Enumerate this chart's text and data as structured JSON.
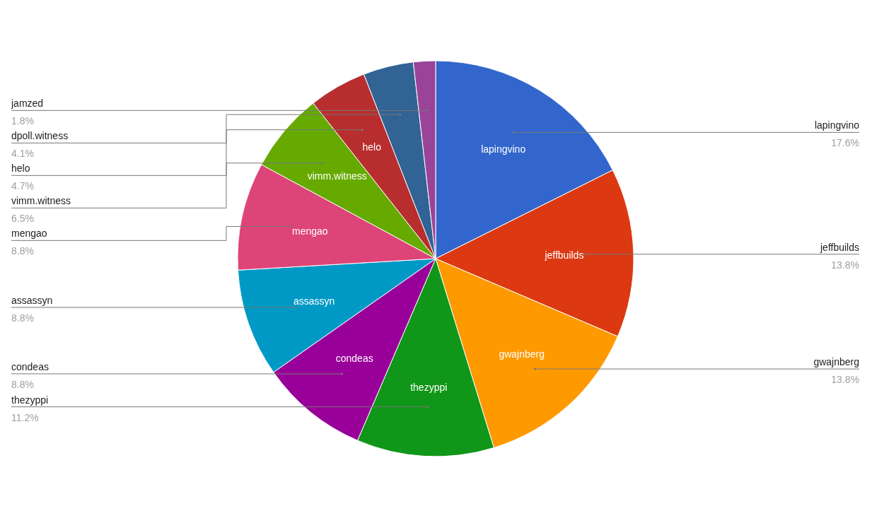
{
  "chart_data": {
    "type": "pie",
    "categories": [
      "lapingvino",
      "jeffbuilds",
      "gwajnberg",
      "thezyppi",
      "condeas",
      "assassyn",
      "mengao",
      "vimm.witness",
      "helo",
      "dpoll.witness",
      "jamzed"
    ],
    "values": [
      17.6,
      13.8,
      13.8,
      11.2,
      8.8,
      8.8,
      8.8,
      6.5,
      4.7,
      4.1,
      1.8
    ],
    "value_labels": [
      "17.6%",
      "13.8%",
      "13.8%",
      "11.2%",
      "8.8%",
      "8.8%",
      "8.8%",
      "6.5%",
      "4.7%",
      "4.1%",
      "1.8%"
    ],
    "colors": [
      "#3366cc",
      "#dc3912",
      "#ff9900",
      "#109618",
      "#990099",
      "#0099c6",
      "#dd4477",
      "#66aa00",
      "#b82e2e",
      "#316395",
      "#994499"
    ]
  }
}
